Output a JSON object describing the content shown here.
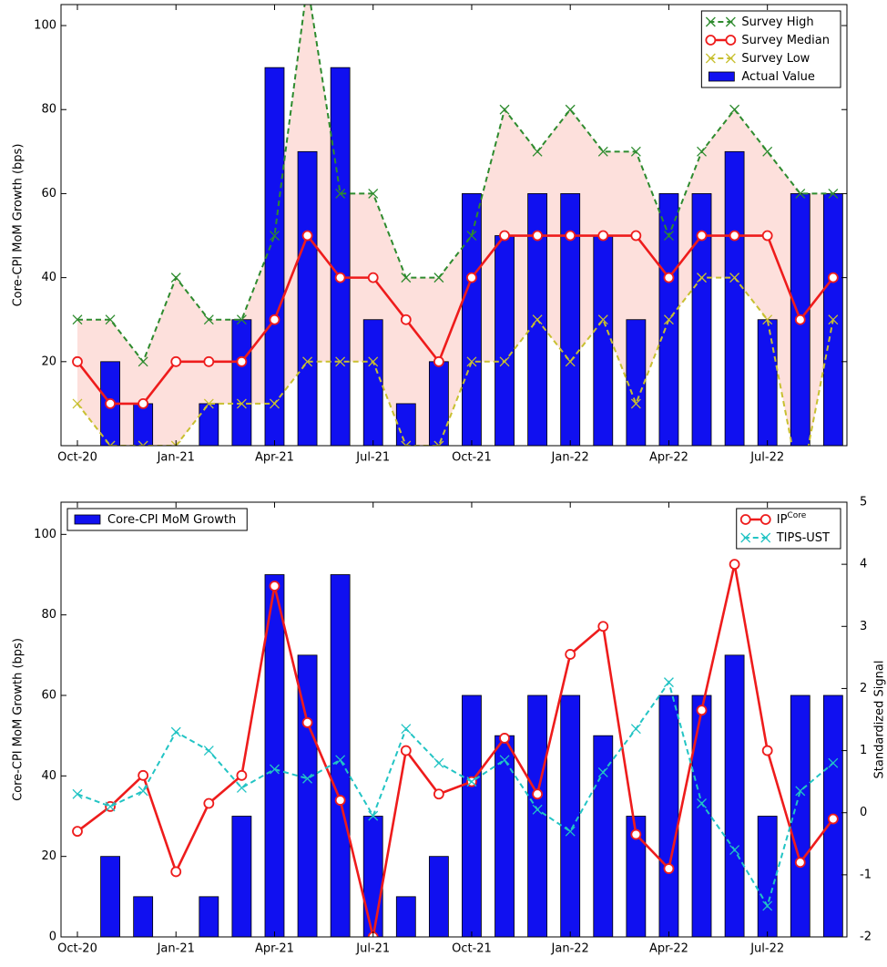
{
  "chart_data": [
    {
      "type": "combo",
      "ylabel": "Core-CPI MoM Growth (bps)",
      "categories": [
        "Oct-20",
        null,
        null,
        "Jan-21",
        null,
        null,
        "Apr-21",
        null,
        null,
        "Jul-21",
        null,
        null,
        "Oct-21",
        null,
        null,
        "Jan-22",
        null,
        null,
        "Apr-22",
        null,
        null,
        "Jul-22",
        null,
        null
      ],
      "ylim": [
        0,
        105
      ],
      "yticks": [
        20,
        40,
        60,
        80,
        100
      ],
      "legend": "upper right",
      "fill_between": {
        "series": [
          0,
          2
        ],
        "color": "#fde0dc"
      },
      "series": [
        {
          "name": "Survey High",
          "kind": "line",
          "color": "#2e8b2e",
          "dash": true,
          "marker": "x",
          "values": [
            30,
            30,
            20,
            40,
            30,
            30,
            50,
            110,
            60,
            60,
            40,
            40,
            50,
            80,
            70,
            80,
            70,
            70,
            50,
            70,
            80,
            70,
            60,
            60
          ]
        },
        {
          "name": "Survey Median",
          "kind": "line",
          "color": "#ee1c1c",
          "dash": false,
          "marker": "o",
          "values": [
            20,
            10,
            10,
            20,
            20,
            20,
            30,
            50,
            40,
            40,
            30,
            20,
            40,
            50,
            50,
            50,
            50,
            50,
            40,
            50,
            50,
            50,
            30,
            40
          ]
        },
        {
          "name": "Survey Low",
          "kind": "line",
          "color": "#c8c030",
          "dash": true,
          "marker": "x",
          "values": [
            10,
            0,
            0,
            0,
            10,
            10,
            10,
            20,
            20,
            20,
            0,
            0,
            20,
            20,
            30,
            20,
            30,
            10,
            30,
            40,
            40,
            30,
            -10,
            30
          ]
        },
        {
          "name": "Actual Value",
          "kind": "bar",
          "color": "#1010f0",
          "values": [
            0,
            20,
            10,
            0,
            10,
            30,
            90,
            70,
            90,
            30,
            10,
            20,
            60,
            50,
            60,
            60,
            50,
            30,
            60,
            60,
            70,
            30,
            60,
            60
          ]
        }
      ]
    },
    {
      "type": "combo",
      "ylabel": "Core-CPI MoM Growth (bps)",
      "y2label": "Standardized Signal",
      "categories": [
        "Oct-20",
        null,
        null,
        "Jan-21",
        null,
        null,
        "Apr-21",
        null,
        null,
        "Jul-21",
        null,
        null,
        "Oct-21",
        null,
        null,
        "Jan-22",
        null,
        null,
        "Apr-22",
        null,
        null,
        "Jul-22",
        null,
        null
      ],
      "ylim": [
        0,
        108
      ],
      "yticks": [
        0,
        20,
        40,
        60,
        80,
        100
      ],
      "y2lim": [
        -2,
        5
      ],
      "y2ticks": [
        -2,
        -1,
        0,
        1,
        2,
        3,
        4,
        5
      ],
      "legend": "upper right",
      "series": [
        {
          "name": "Core-CPI MoM Growth",
          "kind": "bar",
          "color": "#1010f0",
          "legend": "upper left",
          "values": [
            0,
            20,
            10,
            0,
            10,
            30,
            90,
            70,
            90,
            30,
            10,
            20,
            60,
            50,
            60,
            60,
            50,
            30,
            60,
            60,
            70,
            30,
            60,
            60
          ]
        },
        {
          "name": "IP",
          "name_sup": "Core",
          "kind": "line",
          "axis": "y2",
          "color": "#ee1c1c",
          "dash": false,
          "marker": "o",
          "values": [
            -0.3,
            0.1,
            0.6,
            -0.95,
            0.15,
            0.6,
            3.65,
            1.45,
            0.2,
            -2.0,
            1.0,
            0.3,
            0.5,
            1.2,
            0.3,
            2.55,
            3.0,
            -0.35,
            -0.9,
            1.65,
            4.0,
            1.0,
            -0.8,
            -0.1
          ]
        },
        {
          "name": "TIPS-UST",
          "kind": "line",
          "axis": "y2",
          "color": "#22c4c4",
          "dash": true,
          "marker": "x",
          "values": [
            0.3,
            0.1,
            0.35,
            1.3,
            1.0,
            0.4,
            0.7,
            0.55,
            0.85,
            -0.05,
            1.35,
            0.8,
            0.5,
            0.85,
            0.05,
            -0.3,
            0.65,
            1.35,
            2.1,
            0.15,
            -0.6,
            -1.5,
            0.35,
            0.8
          ]
        }
      ]
    }
  ]
}
